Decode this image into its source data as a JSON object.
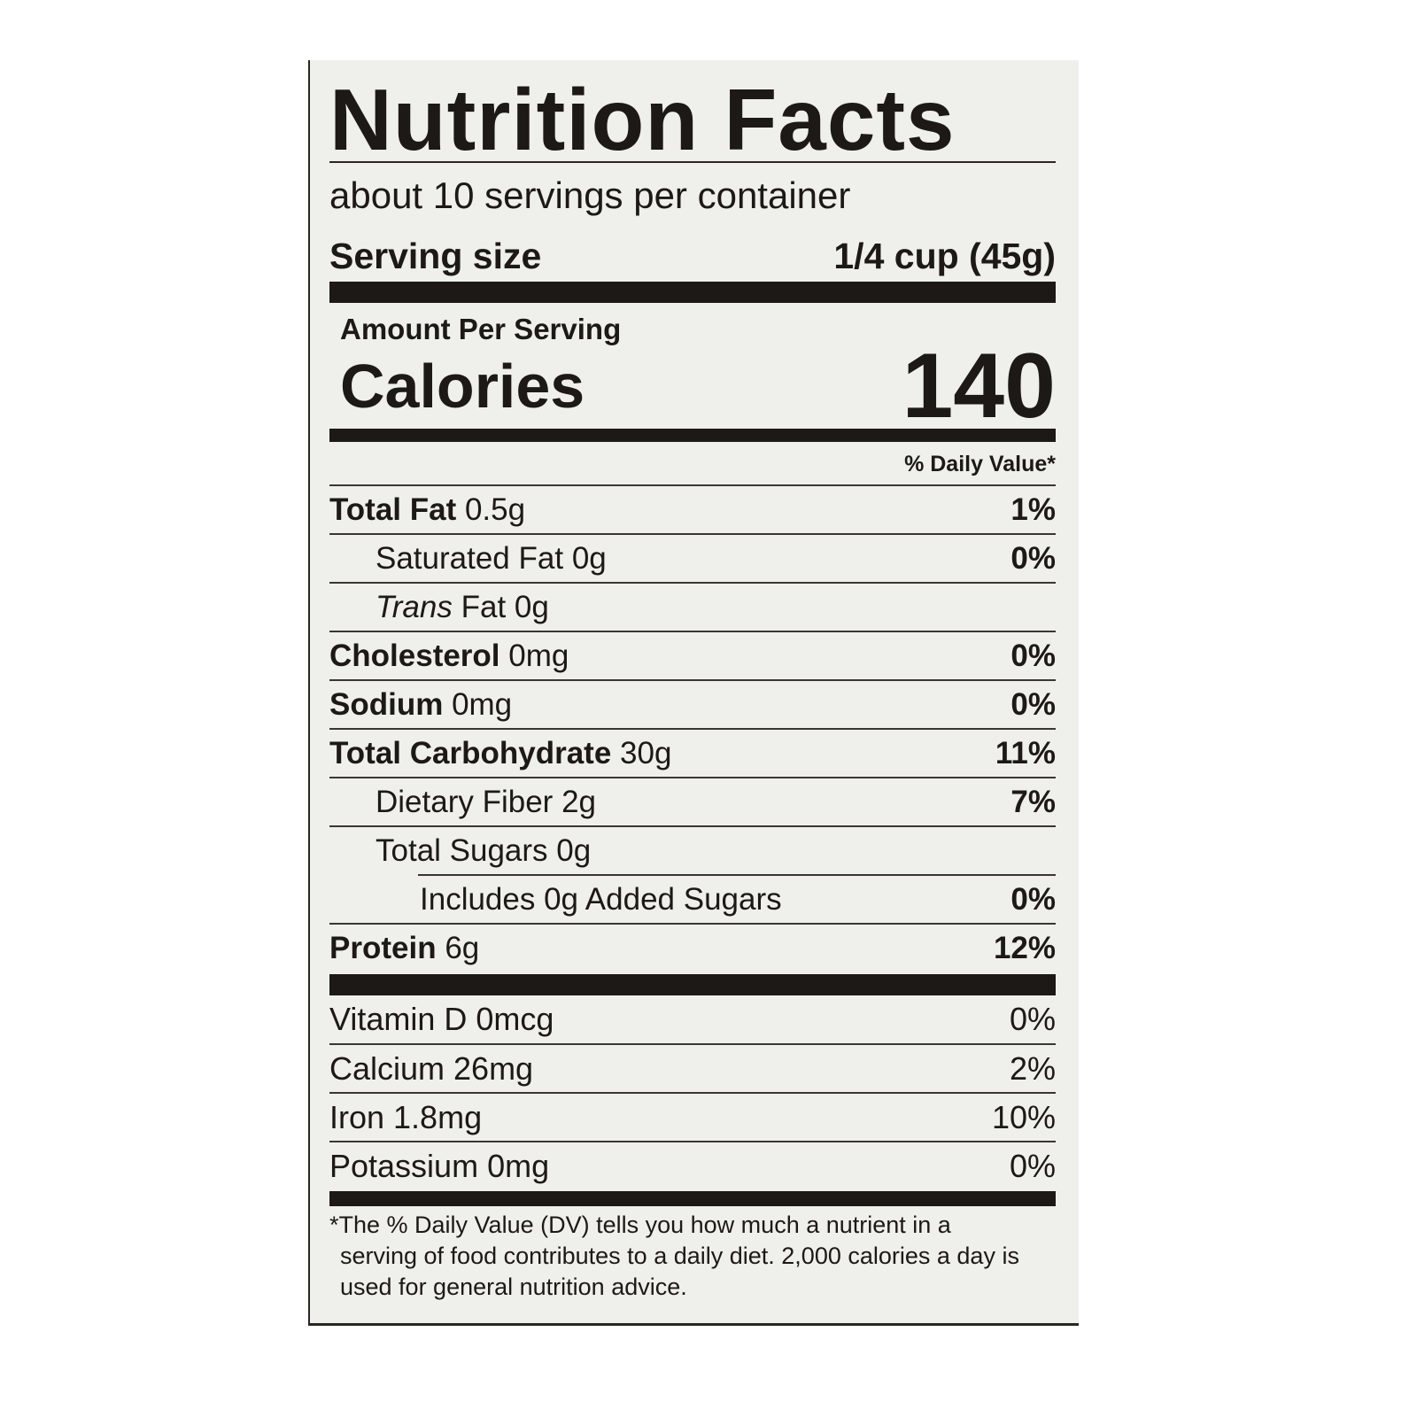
{
  "title": "Nutrition Facts",
  "servings_per_container": "about 10 servings per container",
  "serving_size": {
    "label": "Serving size",
    "value": "1/4 cup (45g)"
  },
  "amount_per_serving": "Amount Per Serving",
  "calories": {
    "label": "Calories",
    "value": "140"
  },
  "daily_value_header": "% Daily Value*",
  "nutrients": [
    {
      "name": "Total Fat",
      "amount": "0.5g",
      "dv": "1%"
    },
    {
      "name": "Saturated Fat",
      "amount": "0g",
      "dv": "0%"
    },
    {
      "name": "Trans",
      "amount": "Fat 0g",
      "dv": ""
    },
    {
      "name": "Cholesterol",
      "amount": "0mg",
      "dv": "0%"
    },
    {
      "name": "Sodium",
      "amount": "0mg",
      "dv": "0%"
    },
    {
      "name": "Total Carbohydrate",
      "amount": "30g",
      "dv": "11%"
    },
    {
      "name": "Dietary Fiber",
      "amount": "2g",
      "dv": "7%"
    },
    {
      "name": "Total Sugars",
      "amount": "0g",
      "dv": ""
    },
    {
      "name": "Includes 0g Added Sugars",
      "amount": "",
      "dv": "0%"
    },
    {
      "name": "Protein",
      "amount": "6g",
      "dv": "12%"
    }
  ],
  "vitamins": [
    {
      "label": "Vitamin D 0mcg",
      "dv": "0%"
    },
    {
      "label": "Calcium 26mg",
      "dv": "2%"
    },
    {
      "label": "Iron 1.8mg",
      "dv": "10%"
    },
    {
      "label": "Potassium 0mg",
      "dv": "0%"
    }
  ],
  "footnote": "*The % Daily Value (DV) tells you how much a nutrient in a serving of food contributes to a daily diet. 2,000 calories a day is used for general nutrition advice."
}
